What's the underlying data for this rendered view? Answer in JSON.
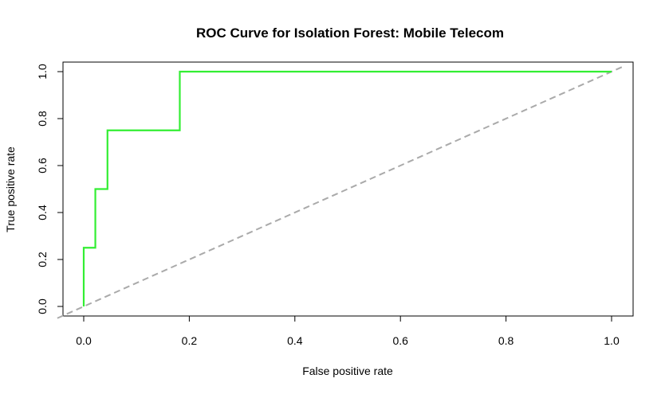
{
  "chart_data": {
    "type": "line",
    "title": "ROC Curve for Isolation Forest: Mobile Telecom",
    "xlabel": "False positive rate",
    "ylabel": "True positive rate",
    "xlim": [
      0,
      1
    ],
    "ylim": [
      0,
      1
    ],
    "x_ticks": [
      "0.0",
      "0.2",
      "0.4",
      "0.6",
      "0.8",
      "1.0"
    ],
    "y_ticks": [
      "0.0",
      "0.2",
      "0.4",
      "0.6",
      "0.8",
      "1.0"
    ],
    "grid": false,
    "legend": "none",
    "series": [
      {
        "style": "step",
        "color": "#33ee33",
        "x": [
          0.0,
          0.0,
          0.022,
          0.022,
          0.045,
          0.045,
          0.182,
          0.182,
          1.0
        ],
        "y": [
          0.0,
          0.25,
          0.25,
          0.5,
          0.5,
          0.75,
          0.75,
          1.0,
          1.0
        ]
      }
    ],
    "reference_line": {
      "style": "dashed",
      "color": "#aaaaaa",
      "x": [
        0,
        1
      ],
      "y": [
        0,
        1
      ]
    }
  }
}
